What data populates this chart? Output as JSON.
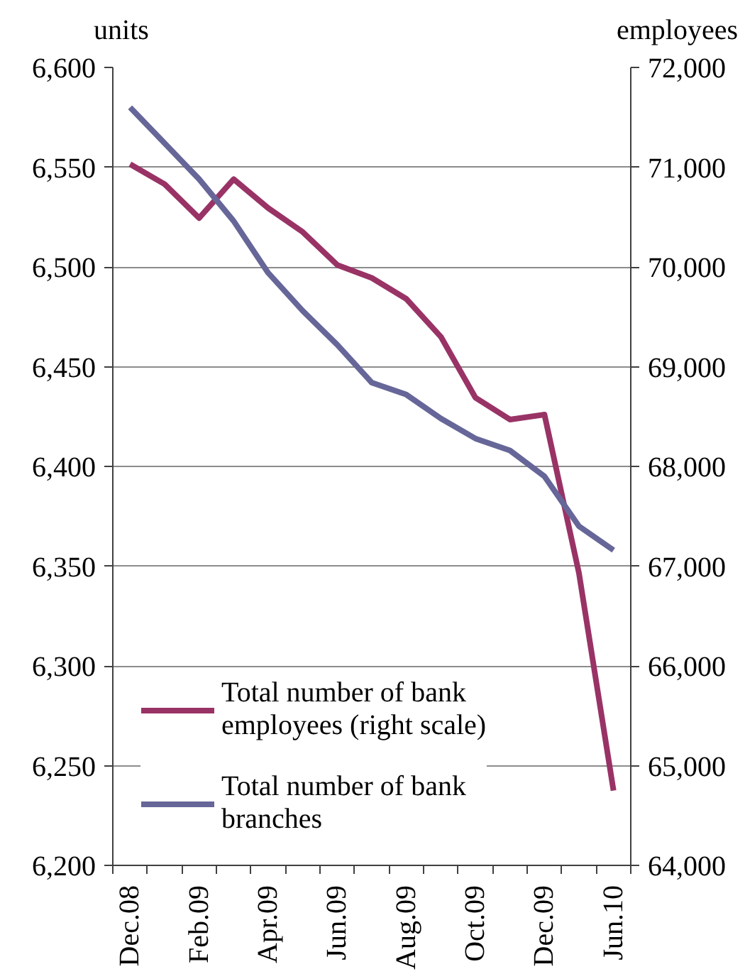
{
  "chart_data": {
    "type": "line",
    "ylabel": "units",
    "y2label": "employees",
    "categories": [
      "Dec.08",
      null,
      "Feb.09",
      null,
      "Apr.09",
      null,
      "Jun.09",
      null,
      "Aug.09",
      null,
      "Oct.09",
      null,
      "Dec.09",
      null,
      "Jun.10"
    ],
    "ylim": [
      6200,
      6600
    ],
    "yticks": [
      {
        "value": 6200,
        "label": "6,200"
      },
      {
        "value": 6250,
        "label": "6,250"
      },
      {
        "value": 6300,
        "label": "6,300"
      },
      {
        "value": 6350,
        "label": "6,350"
      },
      {
        "value": 6400,
        "label": "6,400"
      },
      {
        "value": 6450,
        "label": "6,450"
      },
      {
        "value": 6500,
        "label": "6,500"
      },
      {
        "value": 6550,
        "label": "6,550"
      },
      {
        "value": 6600,
        "label": "6,600"
      }
    ],
    "y2lim": [
      64000,
      72000
    ],
    "y2ticks": [
      {
        "value": 64000,
        "label": "64,000"
      },
      {
        "value": 65000,
        "label": "65,000"
      },
      {
        "value": 66000,
        "label": "66,000"
      },
      {
        "value": 67000,
        "label": "67,000"
      },
      {
        "value": 68000,
        "label": "68,000"
      },
      {
        "value": 69000,
        "label": "69,000"
      },
      {
        "value": 70000,
        "label": "70,000"
      },
      {
        "value": 71000,
        "label": "71,000"
      },
      {
        "value": 72000,
        "label": "72,000"
      }
    ],
    "series": [
      {
        "name": "Total number of bank employees (right scale)",
        "color": "#993366",
        "axis": "y2",
        "values": [
          71030,
          70830,
          70490,
          70880,
          70590,
          70350,
          70020,
          69890,
          69680,
          69300,
          68690,
          68470,
          68520,
          66930,
          64750
        ]
      },
      {
        "name": "Total number of bank branches",
        "color": "#666699",
        "values": [
          6580,
          6562,
          6544,
          6523,
          6497,
          6478,
          6461,
          6442,
          6436,
          6424,
          6414,
          6408,
          6395,
          6370,
          6358
        ]
      }
    ],
    "grid": "y",
    "legend": "bottom left",
    "marker": "none",
    "line_style": "solid"
  }
}
